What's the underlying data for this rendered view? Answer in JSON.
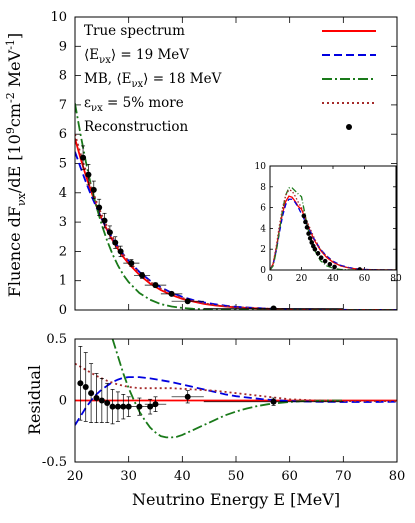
{
  "chart_data": [
    {
      "type": "line",
      "panel": "main",
      "ylabel": "Fluence dF_νx/dE [10^9 cm^-2 MeV^-1]",
      "xlim": [
        20,
        80
      ],
      "ylim": [
        0,
        10
      ],
      "xticks": [
        20,
        30,
        40,
        50,
        60,
        70,
        80
      ],
      "yticks": [
        0,
        1,
        2,
        3,
        4,
        5,
        6,
        7,
        8,
        9,
        10
      ],
      "xtick_labels_visible": false,
      "series": [
        {
          "name": "True spectrum",
          "color": "#ff0000",
          "dash": "solid",
          "x": [
            20,
            21,
            22,
            23,
            24,
            25,
            26,
            27,
            28,
            29,
            30,
            32,
            34,
            36,
            38,
            40,
            42,
            44,
            46,
            48,
            50,
            55,
            60,
            65,
            70,
            75,
            80
          ],
          "y": [
            5.85,
            5.2,
            4.6,
            4.05,
            3.55,
            3.1,
            2.72,
            2.38,
            2.08,
            1.81,
            1.58,
            1.2,
            0.9,
            0.68,
            0.51,
            0.38,
            0.29,
            0.21,
            0.16,
            0.12,
            0.09,
            0.045,
            0.02,
            0.01,
            0.005,
            0.002,
            0.001
          ]
        },
        {
          "name": "⟨E_νx⟩ = 19 MeV",
          "color": "#0000e0",
          "dash": "8,4",
          "x": [
            20,
            21,
            22,
            23,
            24,
            25,
            26,
            27,
            28,
            29,
            30,
            32,
            34,
            36,
            38,
            40,
            42,
            44,
            46,
            48,
            50,
            55,
            60,
            65,
            70,
            75,
            80
          ],
          "y": [
            5.4,
            4.88,
            4.38,
            3.92,
            3.5,
            3.1,
            2.76,
            2.44,
            2.16,
            1.9,
            1.68,
            1.3,
            1.0,
            0.77,
            0.59,
            0.45,
            0.34,
            0.26,
            0.2,
            0.15,
            0.11,
            0.055,
            0.027,
            0.013,
            0.006,
            0.003,
            0.001
          ]
        },
        {
          "name": "MB, ⟨E_νx⟩ = 18 MeV",
          "color": "#1a7a1a",
          "dash": "10,3,2,3",
          "x": [
            20,
            21,
            22,
            23,
            24,
            25,
            26,
            27,
            28,
            29,
            30,
            32,
            34,
            36,
            38,
            40,
            42,
            44,
            46,
            48,
            50,
            55,
            60,
            65,
            70,
            75,
            80
          ],
          "y": [
            7.05,
            6.02,
            5.08,
            4.24,
            3.52,
            2.9,
            2.36,
            1.9,
            1.52,
            1.2,
            0.95,
            0.58,
            0.35,
            0.2,
            0.12,
            0.07,
            0.04,
            0.022,
            0.012,
            0.007,
            0.004,
            0.001,
            0.0,
            0.0,
            0.0,
            0.0,
            0.0
          ]
        },
        {
          "name": "ε_νx = 5% more",
          "color": "#a52a2a",
          "dash": "2,3",
          "x": [
            20,
            21,
            22,
            23,
            24,
            25,
            26,
            27,
            28,
            29,
            30,
            32,
            34,
            36,
            38,
            40,
            42,
            44,
            46,
            48,
            50,
            55,
            60,
            65,
            70,
            75,
            80
          ],
          "y": [
            6.0,
            5.36,
            4.76,
            4.2,
            3.7,
            3.24,
            2.84,
            2.49,
            2.18,
            1.9,
            1.66,
            1.27,
            0.96,
            0.73,
            0.55,
            0.41,
            0.31,
            0.23,
            0.17,
            0.13,
            0.1,
            0.05,
            0.022,
            0.011,
            0.005,
            0.002,
            0.001
          ]
        },
        {
          "name": "Reconstruction",
          "color": "#000000",
          "kind": "points",
          "x": [
            21.5,
            22.5,
            23.5,
            24.5,
            25.5,
            26.5,
            27.5,
            28.5,
            30.5,
            32.5,
            35,
            38,
            41,
            57
          ],
          "y": [
            5.2,
            4.62,
            4.1,
            3.5,
            3.05,
            2.65,
            2.3,
            2.0,
            1.6,
            1.18,
            0.85,
            0.55,
            0.3,
            0.05
          ],
          "xerr": [
            0.5,
            0.5,
            0.5,
            0.5,
            0.5,
            0.5,
            0.5,
            0.5,
            1.5,
            1.5,
            2,
            2,
            3,
            13
          ],
          "yerr": [
            0.4,
            0.35,
            0.3,
            0.28,
            0.25,
            0.22,
            0.2,
            0.18,
            0.12,
            0.1,
            0.08,
            0.06,
            0.05,
            0.02
          ]
        }
      ]
    },
    {
      "type": "line",
      "panel": "inset",
      "xlim": [
        0,
        80
      ],
      "ylim": [
        0,
        10
      ],
      "xticks": [
        0,
        20,
        40,
        60,
        80
      ],
      "yticks": [
        0,
        2,
        4,
        6,
        8,
        10
      ],
      "series": [
        {
          "name": "True spectrum",
          "color": "#ff0000",
          "dash": "solid",
          "x": [
            0,
            2,
            4,
            6,
            8,
            10,
            12,
            14,
            16,
            18,
            20,
            24,
            28,
            32,
            36,
            40,
            45,
            50,
            55,
            60,
            70,
            80
          ],
          "y": [
            0,
            0.6,
            2.1,
            3.9,
            5.5,
            6.6,
            7.1,
            7.0,
            6.6,
            6.1,
            5.85,
            4.3,
            2.9,
            1.9,
            1.2,
            0.75,
            0.38,
            0.2,
            0.1,
            0.05,
            0.01,
            0.002
          ]
        },
        {
          "name": "⟨E_νx⟩ = 19 MeV",
          "color": "#0000e0",
          "dash": "5,3",
          "x": [
            0,
            2,
            4,
            6,
            8,
            10,
            12,
            14,
            16,
            18,
            20,
            24,
            28,
            32,
            36,
            40,
            45,
            50,
            55,
            60,
            70,
            80
          ],
          "y": [
            0,
            0.5,
            1.9,
            3.6,
            5.2,
            6.3,
            6.8,
            6.8,
            6.5,
            6.0,
            5.4,
            4.2,
            3.0,
            2.0,
            1.35,
            0.85,
            0.45,
            0.24,
            0.12,
            0.06,
            0.01,
            0.002
          ]
        },
        {
          "name": "MB, ⟨E_νx⟩ = 18 MeV",
          "color": "#1a7a1a",
          "dash": "6,2,1,2",
          "x": [
            0,
            2,
            4,
            6,
            8,
            10,
            12,
            14,
            16,
            18,
            20,
            24,
            28,
            32,
            36,
            40,
            45,
            50,
            55,
            60,
            70,
            80
          ],
          "y": [
            0,
            0.4,
            1.8,
            3.8,
            5.8,
            7.2,
            7.9,
            7.9,
            7.6,
            7.3,
            7.05,
            4.0,
            2.0,
            0.9,
            0.4,
            0.17,
            0.05,
            0.015,
            0.004,
            0.001,
            0,
            0
          ]
        },
        {
          "name": "ε_νx = 5% more",
          "color": "#a52a2a",
          "dash": "1.5,2",
          "x": [
            0,
            2,
            4,
            6,
            8,
            10,
            12,
            14,
            16,
            18,
            20,
            24,
            28,
            32,
            36,
            40,
            45,
            50,
            55,
            60,
            70,
            80
          ],
          "y": [
            0,
            0.65,
            2.3,
            4.3,
            6.0,
            7.2,
            7.7,
            7.6,
            7.1,
            6.5,
            6.0,
            4.5,
            3.1,
            2.0,
            1.3,
            0.8,
            0.4,
            0.21,
            0.11,
            0.055,
            0.012,
            0.002
          ]
        },
        {
          "name": "Reconstruction",
          "color": "#000000",
          "kind": "points",
          "x": [
            21.5,
            22.5,
            23.5,
            24.5,
            25.5,
            26.5,
            27.5,
            28.5,
            30.5,
            32.5,
            35,
            38,
            41,
            57
          ],
          "y": [
            5.2,
            4.62,
            4.1,
            3.5,
            3.05,
            2.65,
            2.3,
            2.0,
            1.6,
            1.18,
            0.85,
            0.55,
            0.3,
            0.05
          ]
        }
      ]
    },
    {
      "type": "line",
      "panel": "residual",
      "xlabel": "Neutrino Energy E [MeV]",
      "ylabel": "Residual",
      "xlim": [
        20,
        80
      ],
      "ylim": [
        -0.5,
        0.5
      ],
      "xticks": [
        20,
        30,
        40,
        50,
        60,
        70,
        80
      ],
      "yticks": [
        -0.5,
        0,
        0.5
      ],
      "ytick_labels": [
        "-0.5",
        "0",
        "0.5"
      ],
      "series": [
        {
          "name": "True spectrum",
          "color": "#ff0000",
          "dash": "solid",
          "x": [
            20,
            80
          ],
          "y": [
            0,
            0
          ]
        },
        {
          "name": "⟨E_νx⟩ = 19 MeV",
          "color": "#0000e0",
          "dash": "8,4",
          "x": [
            20,
            21,
            22,
            23,
            24,
            25,
            26,
            27,
            28,
            29,
            30,
            32,
            34,
            36,
            38,
            40,
            42,
            44,
            46,
            48,
            50,
            55,
            60,
            65,
            70,
            75,
            80
          ],
          "y": [
            -0.2,
            -0.13,
            -0.06,
            0.0,
            0.05,
            0.09,
            0.12,
            0.15,
            0.17,
            0.185,
            0.19,
            0.19,
            0.18,
            0.165,
            0.15,
            0.13,
            0.11,
            0.09,
            0.07,
            0.05,
            0.035,
            0.01,
            -0.005,
            -0.01,
            -0.012,
            -0.012,
            -0.01
          ]
        },
        {
          "name": "MB, ⟨E_νx⟩ = 18 MeV",
          "color": "#1a7a1a",
          "dash": "10,3,2,3",
          "x": [
            27,
            28,
            29,
            30,
            31,
            32,
            33,
            34,
            35,
            36,
            37,
            38,
            39,
            40,
            42,
            44,
            46,
            48,
            50,
            52,
            54,
            56,
            58,
            60,
            62,
            64,
            66,
            68,
            70
          ],
          "y": [
            0.5,
            0.36,
            0.22,
            0.1,
            0.0,
            -0.09,
            -0.16,
            -0.22,
            -0.26,
            -0.29,
            -0.3,
            -0.3,
            -0.295,
            -0.28,
            -0.24,
            -0.2,
            -0.16,
            -0.12,
            -0.09,
            -0.065,
            -0.045,
            -0.03,
            -0.02,
            -0.012,
            -0.006,
            -0.003,
            -0.001,
            0.0,
            0.0
          ]
        },
        {
          "name": "ε_νx = 5% more",
          "color": "#a52a2a",
          "dash": "2,3",
          "x": [
            20,
            22,
            24,
            26,
            28,
            30,
            32,
            34,
            36,
            38,
            40,
            42,
            44,
            46,
            48,
            50,
            52,
            54,
            56,
            58,
            60,
            65,
            70,
            75,
            80
          ],
          "y": [
            0.3,
            0.25,
            0.2,
            0.16,
            0.13,
            0.11,
            0.1,
            0.1,
            0.1,
            0.1,
            0.095,
            0.09,
            0.085,
            0.08,
            0.07,
            0.06,
            0.05,
            0.04,
            0.03,
            0.02,
            0.01,
            0.0,
            -0.005,
            -0.005,
            -0.005
          ]
        },
        {
          "name": "Reconstruction",
          "color": "#000000",
          "kind": "points",
          "x": [
            21,
            22,
            23,
            24,
            25,
            26,
            27,
            28,
            29,
            30,
            32,
            34,
            35,
            41,
            57
          ],
          "y": [
            0.14,
            0.11,
            0.06,
            0.02,
            0.0,
            -0.02,
            -0.05,
            -0.05,
            -0.05,
            -0.05,
            -0.05,
            -0.05,
            -0.03,
            0.03,
            -0.01
          ],
          "xerr": [
            0.5,
            0.5,
            0.5,
            0.5,
            0.5,
            0.5,
            0.5,
            0.5,
            0.5,
            1,
            1,
            1,
            2,
            3,
            13
          ],
          "yerr": [
            0.3,
            0.28,
            0.24,
            0.2,
            0.18,
            0.16,
            0.14,
            0.12,
            0.1,
            0.08,
            0.07,
            0.06,
            0.06,
            0.05,
            0.03
          ]
        }
      ]
    }
  ],
  "legend": {
    "placement": "top-right",
    "entries": [
      {
        "prefix": "True spectrum",
        "sub": "",
        "suffix": "",
        "color": "#ff0000",
        "dash": "solid",
        "kind": "line"
      },
      {
        "prefix": "⟨E",
        "sub": "νx",
        "suffix": "⟩ = 19 MeV",
        "color": "#0000e0",
        "dash": "8,4",
        "kind": "line"
      },
      {
        "prefix": "MB, ⟨E",
        "sub": "νx",
        "suffix": "⟩ = 18 MeV",
        "color": "#1a7a1a",
        "dash": "10,3,2,3",
        "kind": "line"
      },
      {
        "prefix": "ε",
        "sub": "νx",
        "suffix": " = 5% more",
        "color": "#a52a2a",
        "dash": "2,3",
        "kind": "line"
      },
      {
        "prefix": "Reconstruction",
        "sub": "",
        "suffix": "",
        "color": "#000000",
        "dash": "",
        "kind": "point"
      }
    ]
  },
  "labels": {
    "ylabel_main_prefix": "Fluence dF",
    "ylabel_main_sub": "νx",
    "ylabel_main_mid": "/dE [10",
    "ylabel_main_sup1": "9",
    "ylabel_main_unit": "cm",
    "ylabel_main_sup2": "-2",
    "ylabel_main_unit2": " MeV",
    "ylabel_main_sup3": "-1",
    "ylabel_main_end": "]",
    "ylabel_res": "Residual",
    "xlabel": "Neutrino Energy E [MeV]"
  }
}
